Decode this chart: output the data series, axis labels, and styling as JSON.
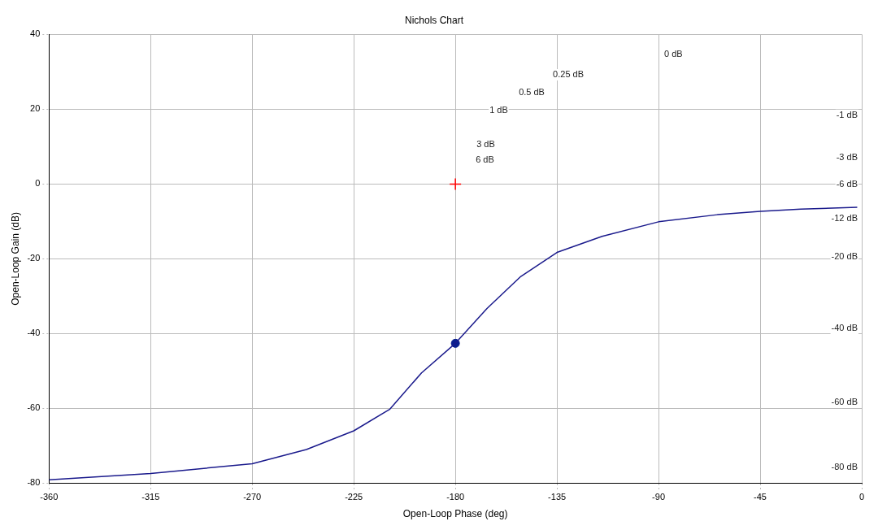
{
  "chart_data": {
    "type": "line",
    "title": "Nichols Chart",
    "xlabel": "Open-Loop Phase (deg)",
    "ylabel": "Open-Loop Gain (dB)",
    "xlim": [
      -360,
      0
    ],
    "xticks": [
      -360,
      -315,
      -270,
      -225,
      -180,
      -135,
      -90,
      -45,
      0
    ],
    "ylim": [
      -80,
      40
    ],
    "yticks": [
      -80,
      -60,
      -40,
      -20,
      0,
      20,
      40
    ],
    "grid": true,
    "legend": false,
    "series": [
      {
        "color": "#1a1a8c",
        "marker": "none",
        "line_style": "solid",
        "x": [
          -360,
          -315,
          -270,
          -246,
          -225,
          -209,
          -195,
          -180,
          -166,
          -151,
          -135,
          -115,
          -90,
          -64,
          -45,
          -27,
          -2
        ],
        "values": [
          -79.1,
          -77.4,
          -74.8,
          -71,
          -66,
          -60.2,
          -50.5,
          -42.6,
          -33.3,
          -24.7,
          -18.3,
          -14,
          -10.1,
          -8.2,
          -7.3,
          -6.7,
          -6.2
        ]
      },
      {
        "type": "scatter",
        "color": "#0a1f8f",
        "marker": "circle",
        "x": [
          -180
        ],
        "values": [
          -42.6
        ]
      },
      {
        "type": "scatter",
        "color": "#ff0000",
        "marker": "cross",
        "x": [
          -180
        ],
        "values": [
          0
        ]
      }
    ],
    "annotations": [
      "0 dB",
      "0.25 dB",
      "0.5 dB",
      "1 dB",
      "3 dB",
      "6 dB",
      "-1 dB",
      "-3 dB",
      "-6 dB",
      "-12 dB",
      "-20 dB",
      "-40 dB",
      "-60 dB",
      "-80 dB"
    ]
  }
}
